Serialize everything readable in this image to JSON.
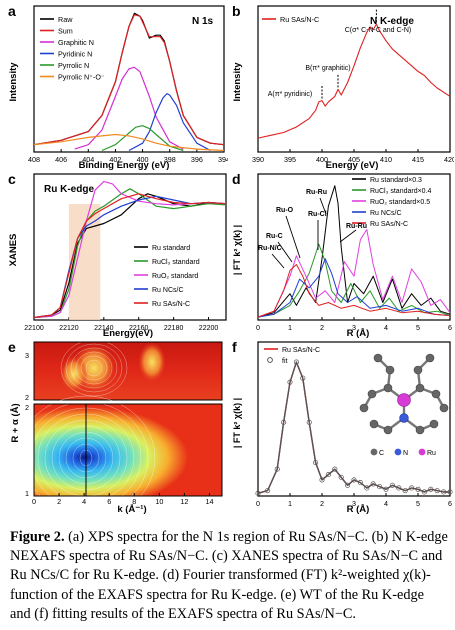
{
  "caption": {
    "label": "Figure 2.",
    "text": "(a) XPS spectra for the N 1s region of Ru SAs/N−C. (b) N K-edge NEXAFS spectra of Ru SAs/N−C. (c) XANES spectra of Ru SAs/N−C and Ru NCs/C for Ru K-edge. (d) Fourier transformed (FT) k²-weighted χ(k)-function of the EXAFS spectra for Ru K-edge. (e) WT of the Ru K-edge and (f) fitting results of the EXAFS spectra of Ru SAs/N−C."
  },
  "panels": {
    "a": {
      "letter": "a",
      "title": "N 1s",
      "xlabel": "Binding Energy (eV)",
      "ylabel": "Intensity",
      "legend": [
        "Raw",
        "Sum",
        "Graphitic N",
        "Pyridinic N",
        "Pyrrolic N",
        "Pyrrolic N⁺-O⁻"
      ]
    },
    "b": {
      "letter": "b",
      "title": "N  K-edge",
      "xlabel": "Energy (eV)",
      "ylabel": "Intensity",
      "legend": [
        "Ru SAs/N-C"
      ],
      "annotations": [
        "A(π* pyridinic)",
        "B(π* graphitic)",
        "C(σ* C-N-C and C-N)"
      ]
    },
    "c": {
      "letter": "c",
      "title": "Ru  K-edge",
      "xlabel": "Energy(eV)",
      "ylabel": "XANES",
      "legend": [
        "Ru standard",
        "RuCl₃ standard",
        "RuO₂ standard",
        "Ru NCs/C",
        "Ru SAs/N-C"
      ]
    },
    "d": {
      "letter": "d",
      "xlabel": "R (Å)",
      "ylabel": "| FT k² χ(k) |",
      "legend": [
        "Ru standard×0.3",
        "RuCl₃ standard×0.4",
        "RuO₂ standard×0.5",
        "Ru NCs/C",
        "Ru SAs/N-C"
      ],
      "annotations": [
        "Ru-Ru",
        "Ru-O",
        "Ru-Cl",
        "Ru-C",
        "Ru-N/C",
        "Ru-Ru"
      ]
    },
    "e": {
      "letter": "e",
      "xlabel": "k (Å⁻¹)",
      "ylabel": "R + α (Å)"
    },
    "f": {
      "letter": "f",
      "xlabel": "R (Å)",
      "ylabel": "| FT k² χ(k) |",
      "legend": [
        "Ru SAs/N-C",
        "fit"
      ],
      "atom_legend": [
        "C",
        "N",
        "Ru"
      ]
    }
  },
  "chart_data": [
    {
      "panel": "a",
      "type": "line",
      "xlabel": "Binding Energy (eV)",
      "ylabel": "Intensity",
      "xlim": [
        408,
        394
      ],
      "x_reversed": true,
      "xticks": [
        408,
        406,
        404,
        402,
        400,
        398,
        396,
        394
      ],
      "series": [
        {
          "name": "Raw",
          "color": "#000000",
          "x": [
            408,
            406,
            404,
            403,
            402,
            401.5,
            401,
            400.6,
            400.2,
            400,
            399.5,
            399,
            398.7,
            398.4,
            398,
            397.5,
            397,
            396,
            395,
            394
          ],
          "y": [
            0.05,
            0.08,
            0.14,
            0.25,
            0.48,
            0.68,
            0.86,
            0.95,
            0.93,
            0.9,
            0.78,
            0.8,
            0.8,
            0.76,
            0.62,
            0.42,
            0.25,
            0.1,
            0.06,
            0.05
          ]
        },
        {
          "name": "Sum",
          "color": "#e02020",
          "x": [
            408,
            406,
            404,
            403,
            402,
            401.5,
            401,
            400.6,
            400.2,
            400,
            399.5,
            399,
            398.7,
            398.4,
            398,
            397.5,
            397,
            396,
            395,
            394
          ],
          "y": [
            0.05,
            0.08,
            0.14,
            0.25,
            0.48,
            0.68,
            0.86,
            0.94,
            0.93,
            0.89,
            0.79,
            0.79,
            0.79,
            0.75,
            0.62,
            0.42,
            0.25,
            0.1,
            0.06,
            0.05
          ]
        },
        {
          "name": "Graphitic N",
          "color": "#d42ed4",
          "x": [
            405,
            404,
            403,
            402,
            401.5,
            401,
            400.6,
            400.2,
            399.5,
            399,
            398,
            397
          ],
          "y": [
            0.02,
            0.05,
            0.15,
            0.38,
            0.5,
            0.57,
            0.58,
            0.55,
            0.38,
            0.24,
            0.07,
            0.02
          ]
        },
        {
          "name": "Pyridinic N",
          "color": "#2040d0",
          "x": [
            401,
            400,
            399.5,
            399,
            398.5,
            398.2,
            398,
            397.5,
            397,
            396,
            395
          ],
          "y": [
            0.01,
            0.06,
            0.14,
            0.27,
            0.37,
            0.4,
            0.39,
            0.32,
            0.2,
            0.06,
            0.01
          ]
        },
        {
          "name": "Pyrrolic N",
          "color": "#2a9a2a",
          "x": [
            403,
            402,
            401,
            400.5,
            400,
            399.5,
            399,
            398,
            397
          ],
          "y": [
            0.01,
            0.05,
            0.13,
            0.17,
            0.18,
            0.16,
            0.12,
            0.04,
            0.01
          ]
        },
        {
          "name": "Pyrrolic N⁺-O⁻",
          "color": "#f08a20",
          "x": [
            408,
            406,
            404,
            403,
            402,
            401,
            400,
            399,
            398,
            396,
            394
          ],
          "y": [
            0.05,
            0.07,
            0.1,
            0.11,
            0.12,
            0.11,
            0.09,
            0.06,
            0.04,
            0.02,
            0.01
          ]
        }
      ]
    },
    {
      "panel": "b",
      "type": "line",
      "xlabel": "Energy (eV)",
      "ylabel": "Intensity",
      "xlim": [
        390,
        420
      ],
      "xticks": [
        390,
        395,
        400,
        405,
        410,
        415,
        420
      ],
      "series": [
        {
          "name": "Ru SAs/N-C",
          "color": "#e02020",
          "x": [
            390,
            392,
            394,
            396,
            398,
            399,
            399.5,
            400,
            400.5,
            401,
            402,
            402.5,
            403,
            404,
            405,
            406,
            407,
            407.5,
            408,
            408.5,
            409,
            410,
            411,
            412,
            413,
            414,
            415,
            416,
            417,
            418,
            419,
            420
          ],
          "y": [
            0.1,
            0.12,
            0.14,
            0.18,
            0.24,
            0.3,
            0.36,
            0.37,
            0.33,
            0.36,
            0.4,
            0.45,
            0.41,
            0.5,
            0.62,
            0.75,
            0.86,
            0.9,
            0.88,
            0.92,
            0.87,
            0.8,
            0.74,
            0.7,
            0.66,
            0.62,
            0.58,
            0.55,
            0.5,
            0.46,
            0.43,
            0.4
          ]
        }
      ]
    },
    {
      "panel": "c",
      "type": "line",
      "xlabel": "Energy(eV)",
      "ylabel": "XANES",
      "xlim": [
        22100,
        22210
      ],
      "xticks": [
        22100,
        22120,
        22140,
        22160,
        22180,
        22200
      ],
      "highlight_band": [
        22120,
        22138
      ],
      "series": [
        {
          "name": "Ru standard",
          "color": "#000000",
          "x": [
            22100,
            22110,
            22115,
            22120,
            22125,
            22130,
            22135,
            22140,
            22150,
            22160,
            22165,
            22170,
            22180,
            22190,
            22200,
            22210
          ],
          "y": [
            0.02,
            0.04,
            0.08,
            0.3,
            0.62,
            0.74,
            0.76,
            0.78,
            0.85,
            0.98,
            1.02,
            1.0,
            0.94,
            0.92,
            0.95,
            0.94
          ]
        },
        {
          "name": "RuCl₃ standard",
          "color": "#2a9a2a",
          "x": [
            22100,
            22110,
            22115,
            22120,
            22125,
            22130,
            22135,
            22140,
            22150,
            22155,
            22160,
            22170,
            22180,
            22190,
            22200,
            22210
          ],
          "y": [
            0.02,
            0.03,
            0.06,
            0.25,
            0.6,
            0.8,
            0.88,
            0.92,
            1.02,
            1.06,
            1.02,
            0.92,
            0.9,
            0.92,
            0.94,
            0.93
          ]
        },
        {
          "name": "RuO₂ standard",
          "color": "#e040e0",
          "x": [
            22100,
            22110,
            22115,
            22120,
            22125,
            22130,
            22135,
            22140,
            22145,
            22150,
            22160,
            22170,
            22180,
            22190,
            22200,
            22210
          ],
          "y": [
            0.02,
            0.03,
            0.06,
            0.2,
            0.5,
            0.8,
            1.05,
            1.12,
            1.1,
            1.02,
            0.96,
            0.94,
            0.93,
            0.94,
            0.95,
            0.94
          ]
        },
        {
          "name": "Ru NCs/C",
          "color": "#2040d0",
          "x": [
            22100,
            22110,
            22115,
            22120,
            22125,
            22130,
            22135,
            22140,
            22150,
            22160,
            22170,
            22180,
            22190,
            22200,
            22210
          ],
          "y": [
            0.02,
            0.04,
            0.1,
            0.4,
            0.66,
            0.76,
            0.8,
            0.85,
            0.92,
            0.97,
            1.0,
            0.97,
            0.94,
            0.95,
            0.94
          ]
        },
        {
          "name": "Ru SAs/N-C",
          "color": "#e02020",
          "x": [
            22100,
            22110,
            22115,
            22120,
            22125,
            22130,
            22135,
            22140,
            22150,
            22160,
            22170,
            22180,
            22190,
            22200,
            22210
          ],
          "y": [
            0.02,
            0.04,
            0.1,
            0.38,
            0.66,
            0.8,
            0.86,
            0.9,
            0.98,
            1.02,
            0.98,
            0.95,
            0.94,
            0.95,
            0.94
          ]
        }
      ]
    },
    {
      "panel": "d",
      "type": "line",
      "xlabel": "R (Å)",
      "ylabel": "| FT k² χ(k) |",
      "xlim": [
        0,
        6
      ],
      "xticks": [
        0,
        1,
        2,
        3,
        4,
        5,
        6
      ],
      "series": [
        {
          "name": "Ru standard×0.3",
          "color": "#000000",
          "x": [
            0,
            0.5,
            1,
            1.2,
            1.5,
            1.8,
            2,
            2.2,
            2.4,
            2.5,
            2.6,
            2.8,
            3,
            3.3,
            3.6,
            3.9,
            4.2,
            4.5,
            4.8,
            5.1,
            5.4,
            5.7,
            6
          ],
          "y": [
            0.02,
            0.05,
            0.18,
            0.1,
            0.22,
            0.12,
            0.42,
            0.78,
            0.92,
            0.8,
            0.5,
            0.12,
            0.25,
            0.18,
            0.3,
            0.12,
            0.28,
            0.08,
            0.18,
            0.1,
            0.15,
            0.06,
            0.04
          ]
        },
        {
          "name": "RuCl₃ standard×0.4",
          "color": "#2a9a2a",
          "x": [
            0,
            0.5,
            1,
            1.3,
            1.6,
            1.9,
            2.1,
            2.3,
            2.6,
            2.9,
            3.2,
            3.5,
            3.8,
            4.1,
            4.4,
            4.8,
            5.2,
            5.6,
            6
          ],
          "y": [
            0.02,
            0.04,
            0.1,
            0.2,
            0.32,
            0.52,
            0.4,
            0.2,
            0.12,
            0.25,
            0.12,
            0.2,
            0.08,
            0.15,
            0.06,
            0.1,
            0.05,
            0.06,
            0.03
          ]
        },
        {
          "name": "RuO₂ standard×0.5",
          "color": "#e040e0",
          "x": [
            0,
            0.5,
            1,
            1.2,
            1.5,
            1.8,
            2.1,
            2.4,
            2.7,
            3,
            3.2,
            3.4,
            3.6,
            3.9,
            4.2,
            4.5,
            4.8,
            5.1,
            5.4,
            5.7,
            6
          ],
          "y": [
            0.02,
            0.06,
            0.3,
            0.44,
            0.3,
            0.15,
            0.2,
            0.12,
            0.4,
            0.3,
            0.55,
            0.62,
            0.38,
            0.14,
            0.3,
            0.12,
            0.35,
            0.26,
            0.1,
            0.14,
            0.05
          ]
        },
        {
          "name": "Ru NCs/C",
          "color": "#2040d0",
          "x": [
            0,
            0.5,
            1,
            1.3,
            1.6,
            1.9,
            2.1,
            2.3,
            2.5,
            2.8,
            3.1,
            3.5,
            4,
            4.5,
            5,
            5.5,
            6
          ],
          "y": [
            0.02,
            0.04,
            0.12,
            0.28,
            0.22,
            0.3,
            0.42,
            0.32,
            0.18,
            0.12,
            0.16,
            0.08,
            0.1,
            0.06,
            0.08,
            0.04,
            0.03
          ]
        },
        {
          "name": "Ru SAs/N-C",
          "color": "#e02020",
          "x": [
            0,
            0.5,
            0.8,
            1,
            1.2,
            1.4,
            1.6,
            1.9,
            2.2,
            2.6,
            3,
            3.5,
            4,
            4.5,
            5,
            5.5,
            6
          ],
          "y": [
            0.02,
            0.06,
            0.2,
            0.34,
            0.38,
            0.3,
            0.18,
            0.1,
            0.12,
            0.08,
            0.1,
            0.06,
            0.08,
            0.05,
            0.06,
            0.04,
            0.03
          ]
        }
      ]
    },
    {
      "panel": "e",
      "type": "heatmap",
      "xlabel": "k (Å⁻¹)",
      "ylabel": "R + α (Å)",
      "xlim": [
        0,
        15
      ],
      "xticks": [
        0,
        2,
        4,
        6,
        8,
        10,
        12,
        14
      ],
      "sub_maps": [
        {
          "ylim": [
            2,
            3.5
          ],
          "yticks": [
            2,
            3
          ]
        },
        {
          "ylim": [
            1,
            2
          ],
          "yticks": [
            1,
            2
          ]
        }
      ],
      "peak": {
        "k": 4,
        "R": 1.45
      }
    },
    {
      "panel": "f",
      "type": "line",
      "xlabel": "R (Å)",
      "ylabel": "| FT k² χ(k) |",
      "xlim": [
        0,
        6
      ],
      "xticks": [
        0,
        1,
        2,
        3,
        4,
        5,
        6
      ],
      "series": [
        {
          "name": "Ru SAs/N-C",
          "color": "#e02020",
          "x": [
            0,
            0.3,
            0.6,
            0.8,
            1,
            1.2,
            1.4,
            1.6,
            1.8,
            2,
            2.2,
            2.4,
            2.6,
            2.8,
            3,
            3.2,
            3.4,
            3.6,
            3.8,
            4,
            4.2,
            4.4,
            4.6,
            4.8,
            5,
            5.2,
            5.4,
            5.6,
            5.8,
            6
          ],
          "y": [
            0.02,
            0.04,
            0.2,
            0.55,
            0.85,
            1.0,
            0.88,
            0.55,
            0.25,
            0.12,
            0.16,
            0.2,
            0.14,
            0.08,
            0.12,
            0.1,
            0.06,
            0.09,
            0.07,
            0.05,
            0.08,
            0.06,
            0.04,
            0.06,
            0.05,
            0.03,
            0.05,
            0.04,
            0.03,
            0.03
          ]
        },
        {
          "name": "fit",
          "color": "#555555",
          "marker": "circle",
          "x": [
            0,
            0.3,
            0.6,
            0.8,
            1,
            1.2,
            1.4,
            1.6,
            1.8,
            2,
            2.2,
            2.4,
            2.6,
            2.8,
            3,
            3.2,
            3.4,
            3.6,
            3.8,
            4,
            4.2,
            4.4,
            4.6,
            4.8,
            5,
            5.2,
            5.4,
            5.6,
            5.8,
            6
          ],
          "y": [
            0.02,
            0.04,
            0.2,
            0.55,
            0.85,
            1.0,
            0.88,
            0.55,
            0.25,
            0.12,
            0.16,
            0.2,
            0.14,
            0.08,
            0.12,
            0.1,
            0.06,
            0.09,
            0.07,
            0.05,
            0.08,
            0.06,
            0.04,
            0.06,
            0.05,
            0.03,
            0.05,
            0.04,
            0.03,
            0.03
          ]
        }
      ]
    }
  ]
}
